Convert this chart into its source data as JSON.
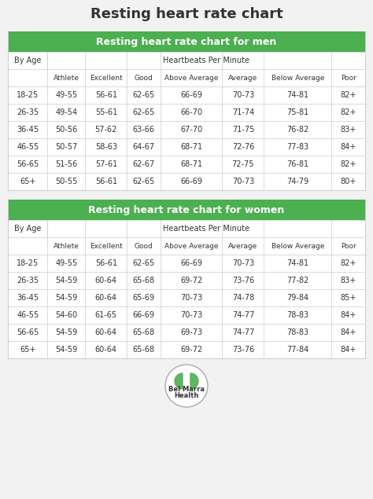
{
  "title": "Resting heart rate chart",
  "background_color": "#f2f2f2",
  "header_text_men": "Resting heart rate chart for men",
  "header_text_women": "Resting heart rate chart for women",
  "columns": [
    "",
    "Athlete",
    "Excellent",
    "Good",
    "Above Average",
    "Average",
    "Below Average",
    "Poor"
  ],
  "men_data": [
    [
      "18-25",
      "49-55",
      "56-61",
      "62-65",
      "66-69",
      "70-73",
      "74-81",
      "82+"
    ],
    [
      "26-35",
      "49-54",
      "55-61",
      "62-65",
      "66-70",
      "71-74",
      "75-81",
      "82+"
    ],
    [
      "36-45",
      "50-56",
      "57-62",
      "63-66",
      "67-70",
      "71-75",
      "76-82",
      "83+"
    ],
    [
      "46-55",
      "50-57",
      "58-63",
      "64-67",
      "68-71",
      "72-76",
      "77-83",
      "84+"
    ],
    [
      "56-65",
      "51-56",
      "57-61",
      "62-67",
      "68-71",
      "72-75",
      "76-81",
      "82+"
    ],
    [
      "65+",
      "50-55",
      "56-61",
      "62-65",
      "66-69",
      "70-73",
      "74-79",
      "80+"
    ]
  ],
  "women_data": [
    [
      "18-25",
      "49-55",
      "56-61",
      "62-65",
      "66-69",
      "70-73",
      "74-81",
      "82+"
    ],
    [
      "26-35",
      "54-59",
      "60-64",
      "65-68",
      "69-72",
      "73-76",
      "77-82",
      "83+"
    ],
    [
      "36-45",
      "54-59",
      "60-64",
      "65-69",
      "70-73",
      "74-78",
      "79-84",
      "85+"
    ],
    [
      "46-55",
      "54-60",
      "61-65",
      "66-69",
      "70-73",
      "74-77",
      "78-83",
      "84+"
    ],
    [
      "56-65",
      "54-59",
      "60-64",
      "65-68",
      "69-73",
      "74-77",
      "78-83",
      "84+"
    ],
    [
      "65+",
      "54-59",
      "60-64",
      "65-68",
      "69-72",
      "73-76",
      "77-84",
      "84+"
    ]
  ],
  "green_color": "#4CAF50",
  "header_text_color": "#ffffff",
  "border_color": "#cccccc",
  "text_color": "#333333",
  "col_ratios": [
    0.1,
    0.095,
    0.105,
    0.085,
    0.155,
    0.105,
    0.17,
    0.085
  ]
}
